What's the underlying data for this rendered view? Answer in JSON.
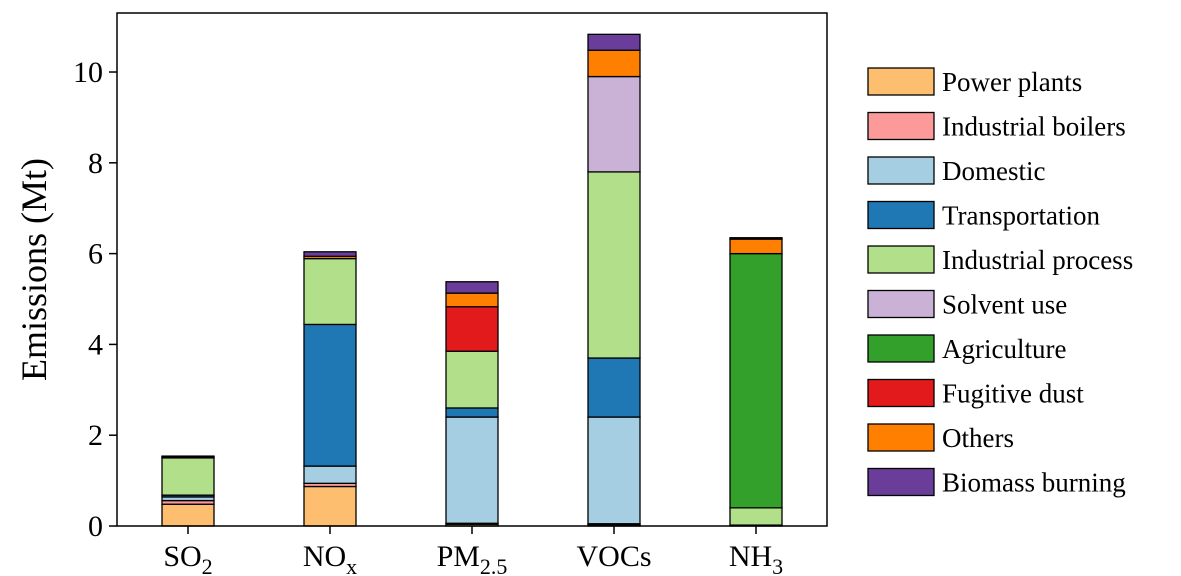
{
  "chart_data": {
    "type": "bar",
    "stacked": true,
    "categories": [
      "SO2",
      "NOx",
      "PM2.5",
      "VOCs",
      "NH3"
    ],
    "category_labels": [
      {
        "base": "SO",
        "sub": "2"
      },
      {
        "base": "NO",
        "sub": "x"
      },
      {
        "base": "PM",
        "sub": "2.5"
      },
      {
        "base": "VOCs",
        "sub": ""
      },
      {
        "base": "NH",
        "sub": "3"
      }
    ],
    "ylabel": "Emissions (Mt)",
    "xlabel": "",
    "title": "",
    "ylim": [
      0,
      11.3
    ],
    "yticks": [
      0,
      2,
      4,
      6,
      8,
      10
    ],
    "grid": false,
    "legend_position": "outside-right",
    "series": [
      {
        "name": "Power plants",
        "color": "#fdbf6f",
        "values": [
          0.48,
          0.87,
          0.04,
          0.03,
          0.0
        ]
      },
      {
        "name": "Industrial boilers",
        "color": "#fb9a99",
        "values": [
          0.08,
          0.07,
          0.02,
          0.02,
          0.0
        ]
      },
      {
        "name": "Domestic",
        "color": "#a6cee3",
        "values": [
          0.08,
          0.38,
          2.34,
          2.35,
          0.02
        ]
      },
      {
        "name": "Transportation",
        "color": "#1f78b4",
        "values": [
          0.04,
          3.12,
          0.2,
          1.3,
          0.0
        ]
      },
      {
        "name": "Industrial process",
        "color": "#b2df8a",
        "values": [
          0.82,
          1.45,
          1.25,
          4.1,
          0.38
        ]
      },
      {
        "name": "Solvent use",
        "color": "#cab2d6",
        "values": [
          0.0,
          0.0,
          0.0,
          2.1,
          0.0
        ]
      },
      {
        "name": "Agriculture",
        "color": "#33a02c",
        "values": [
          0.0,
          0.0,
          0.0,
          0.0,
          5.6
        ]
      },
      {
        "name": "Fugitive dust",
        "color": "#e31a1c",
        "values": [
          0.0,
          0.0,
          0.98,
          0.0,
          0.0
        ]
      },
      {
        "name": "Others",
        "color": "#ff7f00",
        "values": [
          0.02,
          0.05,
          0.3,
          0.58,
          0.32
        ]
      },
      {
        "name": "Biomass burning",
        "color": "#6a3d9a",
        "values": [
          0.02,
          0.1,
          0.25,
          0.35,
          0.03
        ]
      }
    ]
  }
}
